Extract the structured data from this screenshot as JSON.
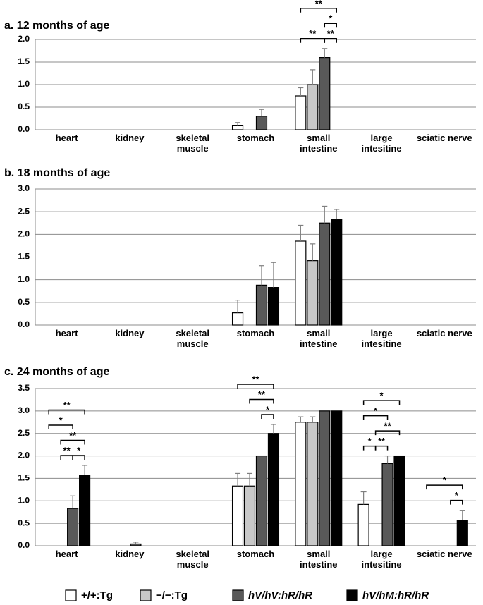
{
  "chart_data": [
    {
      "type": "bar",
      "title": "a. 12 months of age",
      "categories": [
        "heart",
        "kidney",
        "skeletal muscle",
        "stomach",
        "small intestine",
        "large intesitine",
        "sciatic nerve"
      ],
      "series": [
        {
          "name": "+/+:Tg",
          "color": "#ffffff",
          "values": [
            0,
            0,
            0,
            0.1,
            0.75,
            0,
            0
          ],
          "errors": [
            null,
            null,
            null,
            0.06,
            0.18,
            null,
            null
          ]
        },
        {
          "name": "−/−:Tg",
          "color": "#c8c8c8",
          "values": [
            0,
            0,
            0,
            0,
            1.0,
            0,
            0
          ],
          "errors": [
            null,
            null,
            null,
            null,
            0.33,
            null,
            null
          ]
        },
        {
          "name": "hV/hV:hR/hR",
          "color": "#595959",
          "values": [
            0,
            0,
            0,
            0.3,
            1.6,
            0,
            0
          ],
          "errors": [
            null,
            null,
            null,
            0.15,
            0.2,
            null,
            null
          ]
        },
        {
          "name": "hV/hM:hR/hR",
          "color": "#000000",
          "values": [
            0,
            0,
            0,
            0,
            0,
            0,
            0
          ],
          "errors": [
            null,
            null,
            null,
            null,
            null,
            null,
            null
          ]
        }
      ],
      "ylim": [
        0,
        2
      ],
      "yticks": [
        {
          "value": 0,
          "label": "0.0"
        },
        0.5,
        {
          "value": 1,
          "label": "1.0"
        },
        1.5,
        {
          "value": 2,
          "label": "2.0"
        }
      ],
      "grid": true,
      "brackets": [
        {
          "category": 4,
          "rows": [
            [
              {
                "from": 0,
                "to": 3,
                "label": "**"
              }
            ],
            [
              {
                "from": 2,
                "to": 3,
                "label": "*"
              }
            ],
            [
              {
                "from": 0,
                "to": 2,
                "label": "**"
              },
              {
                "from": 2,
                "to": 3,
                "label": "**"
              }
            ]
          ]
        }
      ]
    },
    {
      "type": "bar",
      "title": "b. 18 months of age",
      "categories": [
        "heart",
        "kidney",
        "skeletal muscle",
        "stomach",
        "small intestine",
        "large intesitine",
        "sciatic nerve"
      ],
      "series": [
        {
          "name": "+/+:Tg",
          "color": "#ffffff",
          "values": [
            0,
            0,
            0,
            0.27,
            1.85,
            0,
            0
          ],
          "errors": [
            null,
            null,
            null,
            0.28,
            0.35,
            null,
            null
          ]
        },
        {
          "name": "−/−:Tg",
          "color": "#c8c8c8",
          "values": [
            0,
            0,
            0,
            0,
            1.42,
            0,
            0
          ],
          "errors": [
            null,
            null,
            null,
            null,
            0.37,
            null,
            null
          ]
        },
        {
          "name": "hV/hV:hR/hR",
          "color": "#595959",
          "values": [
            0,
            0,
            0,
            0.88,
            2.25,
            0,
            0
          ],
          "errors": [
            null,
            null,
            null,
            0.43,
            0.37,
            null,
            null
          ]
        },
        {
          "name": "hV/hM:hR/hR",
          "color": "#000000",
          "values": [
            0,
            0,
            0,
            0.83,
            2.33,
            0,
            0
          ],
          "errors": [
            null,
            null,
            null,
            0.55,
            0.22,
            null,
            null
          ]
        }
      ],
      "ylim": [
        0,
        3
      ],
      "yticks": [
        {
          "value": 0,
          "label": "0.0"
        },
        0.5,
        {
          "value": 1,
          "label": "1.0"
        },
        1.5,
        {
          "value": 2,
          "label": "2.0"
        },
        2.5,
        {
          "value": 3,
          "label": "3.0"
        }
      ],
      "grid": true,
      "brackets": []
    },
    {
      "type": "bar",
      "title": "c. 24 months of age",
      "categories": [
        "heart",
        "kidney",
        "skeletal muscle",
        "stomach",
        "small intestine",
        "large intesitine",
        "sciatic nerve"
      ],
      "series": [
        {
          "name": "+/+:Tg",
          "color": "#ffffff",
          "values": [
            0,
            0,
            0,
            1.33,
            2.75,
            0.92,
            0
          ],
          "errors": [
            null,
            null,
            null,
            0.28,
            0.12,
            0.28,
            null
          ]
        },
        {
          "name": "−/−:Tg",
          "color": "#c8c8c8",
          "values": [
            0,
            0,
            0,
            1.33,
            2.75,
            0,
            0
          ],
          "errors": [
            null,
            null,
            null,
            0.28,
            0.12,
            null,
            null
          ]
        },
        {
          "name": "hV/hV:hR/hR",
          "color": "#595959",
          "values": [
            0.83,
            0.04,
            0,
            2.0,
            3.0,
            1.83,
            0
          ],
          "errors": [
            0.28,
            0.04,
            null,
            null,
            null,
            0.17,
            null
          ]
        },
        {
          "name": "hV/hM:hR/hR",
          "color": "#000000",
          "values": [
            1.57,
            0,
            0,
            2.5,
            3.0,
            2.0,
            0.57
          ],
          "errors": [
            0.22,
            null,
            null,
            0.2,
            null,
            null,
            0.22
          ]
        }
      ],
      "ylim": [
        0,
        3.5
      ],
      "yticks": [
        {
          "value": 0,
          "label": "0.0"
        },
        0.5,
        {
          "value": 1,
          "label": "1.0"
        },
        1.5,
        {
          "value": 2,
          "label": "2.0"
        },
        2.5,
        {
          "value": 3,
          "label": "3.0"
        },
        3.5
      ],
      "grid": true,
      "brackets": [
        {
          "category": 0,
          "rows": [
            [
              {
                "from": 0,
                "to": 3,
                "label": "**"
              }
            ],
            [
              {
                "from": 0,
                "to": 2,
                "label": "*"
              }
            ],
            [
              {
                "from": 1,
                "to": 3,
                "label": "**"
              }
            ],
            [
              {
                "from": 1,
                "to": 2,
                "label": "**"
              },
              {
                "from": 2,
                "to": 3,
                "label": "*"
              }
            ]
          ]
        },
        {
          "category": 3,
          "rows": [
            [
              {
                "from": 0,
                "to": 3,
                "label": "**"
              }
            ],
            [
              {
                "from": 1,
                "to": 3,
                "label": "**"
              }
            ],
            [
              {
                "from": 2,
                "to": 3,
                "label": "*"
              }
            ]
          ]
        },
        {
          "category": 5,
          "rows": [
            [
              {
                "from": 0,
                "to": 3,
                "label": "*"
              }
            ],
            [
              {
                "from": 0,
                "to": 2,
                "label": "*"
              }
            ],
            [
              {
                "from": 1,
                "to": 3,
                "label": "**"
              }
            ],
            [
              {
                "from": 0,
                "to": 1,
                "label": "*"
              },
              {
                "from": 1,
                "to": 2,
                "label": "**"
              }
            ]
          ]
        },
        {
          "category": 6,
          "rows": [
            [
              {
                "from": 0,
                "to": 3,
                "label": "*"
              }
            ],
            [
              {
                "from": 2,
                "to": 3,
                "label": "*"
              }
            ]
          ]
        }
      ]
    }
  ]
}
